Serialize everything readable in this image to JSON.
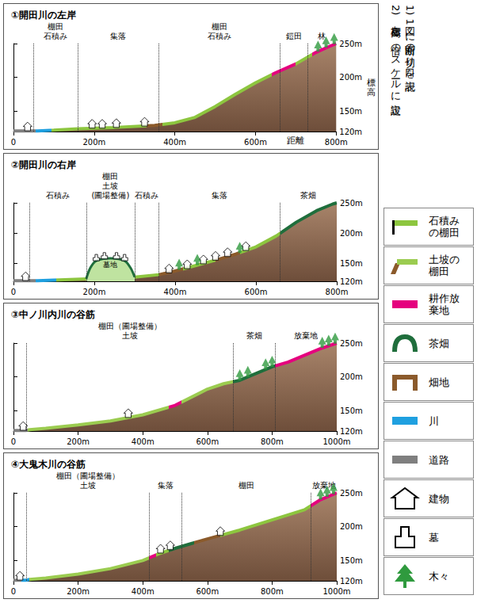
{
  "notes": [
    "1) 図1に断面の切り口を表記",
    "2) 標高を2倍のスケールに設定"
  ],
  "legend_items": [
    {
      "name": "石積みの棚田",
      "color": "#8dc63f"
    },
    {
      "name": "土坡の棚田",
      "color": "#9bcc50"
    },
    {
      "name": "耕作放棄地",
      "color": "#e5007e"
    },
    {
      "name": "茶畑",
      "color": "#1f6e3c"
    },
    {
      "name": "畑地",
      "color": "#8b5a2b"
    },
    {
      "name": "川",
      "color": "#1fa0e0"
    },
    {
      "name": "道路",
      "color": "#7f7f7f"
    },
    {
      "name": "建物",
      "color": "#ffffff"
    },
    {
      "name": "墓",
      "color": "#ffffff"
    },
    {
      "name": "木々",
      "color": "#2f9a3e"
    }
  ],
  "chart_data": [
    {
      "type": "area",
      "title": "①開田川の左岸",
      "x_label": "距離",
      "y_label": "標高",
      "x": [
        0,
        40,
        60,
        100,
        160,
        250,
        350,
        400,
        450,
        500,
        550,
        600,
        650,
        700,
        750,
        780,
        800
      ],
      "values": [
        121,
        121,
        121,
        122,
        124,
        126,
        129,
        133,
        141,
        157,
        175,
        192,
        207,
        220,
        237,
        245,
        250
      ],
      "xlim": [
        0,
        800
      ],
      "xticks": [
        0,
        {
          "value": 200,
          "label": "200m"
        },
        {
          "value": 400,
          "label": "400m"
        },
        {
          "value": 600,
          "label": "600m"
        },
        {
          "value": 800,
          "label": "800m"
        }
      ],
      "ylim": [
        120,
        250
      ],
      "yticks": [
        {
          "value": 120,
          "label": "120m"
        },
        {
          "value": 150,
          "label": "150m"
        },
        {
          "value": 200,
          "label": "200m"
        },
        {
          "value": 250,
          "label": "250m"
        }
      ],
      "zones": [
        {
          "x": [
            50,
            160
          ],
          "label": [
            "棚田",
            "石積み"
          ]
        },
        {
          "x": [
            160,
            360
          ],
          "label": [
            "集落"
          ]
        },
        {
          "x": [
            360,
            660
          ],
          "label": [
            "棚田",
            "石積み"
          ]
        },
        {
          "x": [
            660,
            730
          ],
          "label": [
            "鎧田"
          ]
        },
        {
          "x": [
            730,
            800
          ],
          "label": [
            "林"
          ]
        }
      ],
      "land_use": [
        {
          "x": [
            0,
            55
          ],
          "use": "道路"
        },
        {
          "x": [
            55,
            95
          ],
          "use": "川"
        },
        {
          "x": [
            95,
            330
          ],
          "use": "石積みの棚田"
        },
        {
          "x": [
            330,
            370
          ],
          "use": "畑地"
        },
        {
          "x": [
            370,
            640
          ],
          "use": "石積みの棚田"
        },
        {
          "x": [
            640,
            700
          ],
          "use": "耕作放棄地"
        },
        {
          "x": [
            700,
            740
          ],
          "use": "石積みの棚田"
        },
        {
          "x": [
            740,
            800
          ],
          "use": "耕作放棄地"
        }
      ],
      "buildings": [
        [
          35,
          121
        ],
        [
          195,
          125
        ],
        [
          220,
          125
        ],
        [
          255,
          126
        ],
        [
          325,
          128
        ]
      ],
      "trees": [
        [
          755,
          238
        ],
        [
          775,
          244
        ],
        [
          795,
          249
        ]
      ]
    },
    {
      "type": "area",
      "title": "②開田川の右岸",
      "x": [
        0,
        40,
        60,
        100,
        180,
        300,
        360,
        400,
        450,
        500,
        550,
        600,
        650,
        700,
        750,
        790,
        800
      ],
      "values": [
        121,
        121,
        121,
        122,
        124,
        127,
        131,
        137,
        146,
        155,
        165,
        177,
        195,
        218,
        237,
        248,
        250
      ],
      "xlim": [
        0,
        800
      ],
      "xticks": [
        0,
        {
          "value": 200,
          "label": "200m"
        },
        {
          "value": 400,
          "label": "400m"
        },
        {
          "value": 600,
          "label": "600m"
        },
        {
          "value": 800,
          "label": "800m"
        }
      ],
      "ylim": [
        120,
        250
      ],
      "yticks": [
        {
          "value": 120,
          "label": "120m"
        },
        {
          "value": 150,
          "label": "150m"
        },
        {
          "value": 200,
          "label": "200m"
        },
        {
          "value": 250,
          "label": "250m"
        }
      ],
      "zones": [
        {
          "x": [
            40,
            180
          ],
          "label": [
            "石積み"
          ]
        },
        {
          "x": [
            180,
            300
          ],
          "label": [
            "棚田",
            "土坡",
            "(圃場整備)"
          ]
        },
        {
          "x": [
            300,
            360
          ],
          "label": [
            "石積み"
          ]
        },
        {
          "x": [
            360,
            660
          ],
          "label": [
            "集落"
          ]
        },
        {
          "x": [
            660,
            800
          ],
          "label": [
            "茶畑"
          ]
        }
      ],
      "land_use": [
        {
          "x": [
            0,
            55
          ],
          "use": "道路"
        },
        {
          "x": [
            55,
            105
          ],
          "use": "川"
        },
        {
          "x": [
            105,
            180
          ],
          "use": "石積みの棚田"
        },
        {
          "x": [
            180,
            300
          ],
          "use": "土坡の棚田"
        },
        {
          "x": [
            300,
            360
          ],
          "use": "石積みの棚田"
        },
        {
          "x": [
            360,
            420
          ],
          "use": "畑地"
        },
        {
          "x": [
            420,
            500
          ],
          "use": "石積みの棚田"
        },
        {
          "x": [
            500,
            560
          ],
          "use": "畑地"
        },
        {
          "x": [
            560,
            660
          ],
          "use": "石積みの棚田"
        },
        {
          "x": [
            660,
            800
          ],
          "use": "茶畑"
        }
      ],
      "mound": {
        "label": "墓地",
        "x": [
          180,
          190,
          205,
          240,
          275,
          290,
          300
        ],
        "y": [
          124,
          142,
          154,
          158,
          154,
          142,
          127
        ]
      },
      "graves": [
        [
          205,
          154
        ],
        [
          225,
          157
        ],
        [
          255,
          157
        ],
        [
          275,
          154
        ]
      ],
      "buildings": [
        [
          30,
          121
        ],
        [
          385,
          134
        ],
        [
          430,
          141
        ],
        [
          470,
          149
        ],
        [
          500,
          155
        ],
        [
          530,
          161
        ],
        [
          575,
          171
        ]
      ],
      "trees": [
        [
          410,
          139
        ],
        [
          455,
          147
        ],
        [
          560,
          167
        ]
      ]
    },
    {
      "type": "area",
      "title": "③中ノ川内川の谷筋",
      "x": [
        0,
        40,
        50,
        100,
        200,
        300,
        400,
        500,
        600,
        650,
        700,
        750,
        800,
        850,
        900,
        950,
        1000
      ],
      "values": [
        121,
        121,
        122,
        124,
        129,
        135,
        144,
        158,
        182,
        190,
        195,
        205,
        215,
        222,
        232,
        242,
        250
      ],
      "xlim": [
        0,
        1000
      ],
      "xticks": [
        0,
        {
          "value": 200,
          "label": "200m"
        },
        {
          "value": 400,
          "label": "400m"
        },
        {
          "value": 600,
          "label": "600m"
        },
        {
          "value": 800,
          "label": "800m"
        },
        {
          "value": 1000,
          "label": "1000m"
        }
      ],
      "ylim": [
        120,
        250
      ],
      "yticks": [
        {
          "value": 120,
          "label": "120m"
        },
        {
          "value": 150,
          "label": "150m"
        },
        {
          "value": 200,
          "label": "200m"
        },
        {
          "value": 250,
          "label": "250m"
        }
      ],
      "zones": [
        {
          "x": [
            40,
            680
          ],
          "label": [
            "棚田（圃場整備）",
            "土坡"
          ]
        },
        {
          "x": [
            680,
            810
          ],
          "label": [
            "茶畑"
          ]
        },
        {
          "x": [
            810,
            1000
          ],
          "label": [
            "放棄地"
          ]
        }
      ],
      "land_use": [
        {
          "x": [
            0,
            45
          ],
          "use": "道路"
        },
        {
          "x": [
            45,
            480
          ],
          "use": "土坡の棚田"
        },
        {
          "x": [
            480,
            520
          ],
          "use": "耕作放棄地"
        },
        {
          "x": [
            520,
            680
          ],
          "use": "土坡の棚田"
        },
        {
          "x": [
            680,
            810
          ],
          "use": "茶畑"
        },
        {
          "x": [
            810,
            1000
          ],
          "use": "耕作放棄地"
        }
      ],
      "buildings": [
        [
          30,
          121
        ],
        [
          355,
          140
        ]
      ],
      "trees": [
        [
          700,
          195
        ],
        [
          725,
          200
        ],
        [
          780,
          211
        ],
        [
          800,
          215
        ],
        [
          955,
          243
        ],
        [
          975,
          246
        ],
        [
          995,
          249
        ]
      ]
    },
    {
      "type": "area",
      "title": "④大鬼木川の谷筋",
      "x": [
        0,
        40,
        50,
        100,
        200,
        300,
        400,
        450,
        500,
        550,
        600,
        700,
        800,
        900,
        950,
        1000
      ],
      "values": [
        121,
        121,
        122,
        124,
        130,
        138,
        150,
        160,
        168,
        175,
        182,
        195,
        210,
        225,
        240,
        250
      ],
      "xlim": [
        0,
        1000
      ],
      "xticks": [
        0,
        {
          "value": 200,
          "label": "200m"
        },
        {
          "value": 400,
          "label": "400m"
        },
        {
          "value": 600,
          "label": "600m"
        },
        {
          "value": 800,
          "label": "800m"
        },
        {
          "value": 1000,
          "label": "1000m"
        }
      ],
      "ylim": [
        120,
        250
      ],
      "yticks": [
        {
          "value": 120,
          "label": "120m"
        },
        {
          "value": 150,
          "label": "150m"
        },
        {
          "value": 200,
          "label": "200m"
        },
        {
          "value": 250,
          "label": "250m"
        }
      ],
      "zones": [
        {
          "x": [
            40,
            420
          ],
          "label": [
            "棚田（圃場整備）",
            "土坡"
          ]
        },
        {
          "x": [
            420,
            520
          ],
          "label": [
            "集落"
          ]
        },
        {
          "x": [
            520,
            920
          ],
          "label": [
            "棚田"
          ]
        },
        {
          "x": [
            920,
            1000
          ],
          "label": [
            "放棄地"
          ]
        }
      ],
      "land_use": [
        {
          "x": [
            0,
            25
          ],
          "use": "道路"
        },
        {
          "x": [
            25,
            50
          ],
          "use": "川"
        },
        {
          "x": [
            50,
            420
          ],
          "use": "土坡の棚田"
        },
        {
          "x": [
            420,
            440
          ],
          "use": "耕作放棄地"
        },
        {
          "x": [
            440,
            480
          ],
          "use": "石積みの棚田"
        },
        {
          "x": [
            480,
            560
          ],
          "use": "茶畑"
        },
        {
          "x": [
            560,
            640
          ],
          "use": "畑地"
        },
        {
          "x": [
            640,
            920
          ],
          "use": "石積みの棚田"
        },
        {
          "x": [
            920,
            1000
          ],
          "use": "耕作放棄地"
        }
      ],
      "buildings": [
        [
          20,
          121
        ],
        [
          455,
          161
        ],
        [
          485,
          166
        ],
        [
          640,
          187
        ]
      ],
      "trees": [
        [
          950,
          240
        ],
        [
          970,
          244
        ],
        [
          990,
          248
        ]
      ]
    }
  ]
}
